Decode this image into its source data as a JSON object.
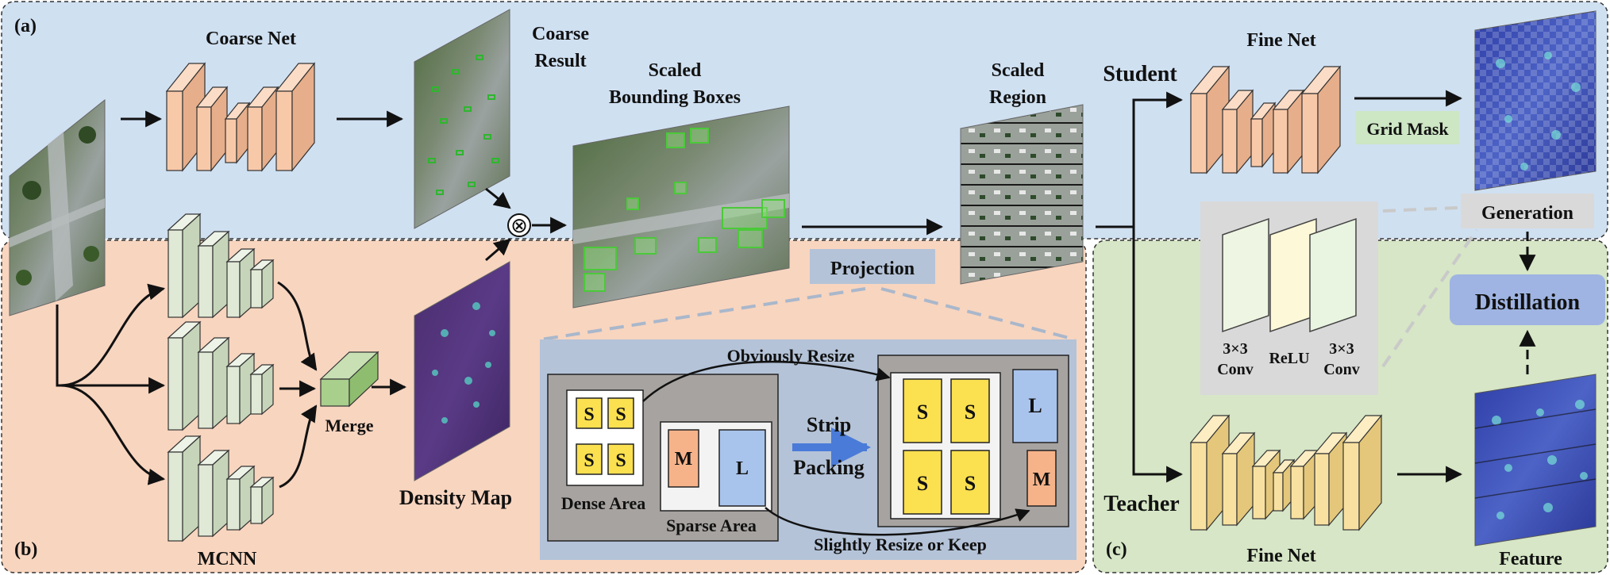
{
  "panels": {
    "a": "(a)",
    "b": "(b)",
    "c": "(c)"
  },
  "labels": {
    "coarse_net": "Coarse Net",
    "coarse_result_1": "Coarse",
    "coarse_result_2": "Result",
    "scaled_bbox_1": "Scaled",
    "scaled_bbox_2": "Bounding Boxes",
    "scaled_region_1": "Scaled",
    "scaled_region_2": "Region",
    "student": "Student",
    "teacher": "Teacher",
    "fine_net_top": "Fine Net",
    "fine_net_bottom": "Fine Net",
    "grid_mask": "Grid Mask",
    "generation": "Generation",
    "distillation": "Distillation",
    "feature": "Feature",
    "projection": "Projection",
    "merge": "Merge",
    "mcnn": "MCNN",
    "density_map": "Density Map",
    "conv1_a": "3×3",
    "conv1_b": "Conv",
    "relu": "ReLU",
    "conv2_a": "3×3",
    "conv2_b": "Conv",
    "obviously_resize": "Obviously Resize",
    "slightly_resize": "Slightly Resize or Keep",
    "strip": "Strip",
    "packing": "Packing",
    "dense_area": "Dense Area",
    "sparse_area": "Sparse Area",
    "multiply": "⊗"
  },
  "packing": {
    "dense_tiles": [
      "S",
      "S",
      "S",
      "S"
    ],
    "sparse_medium": "M",
    "sparse_large": "L",
    "packed_tiles": [
      "S",
      "S",
      "S",
      "S"
    ],
    "packed_large": "L",
    "packed_medium": "M"
  },
  "colors": {
    "panel_a_bg": "#cfe0f1",
    "panel_b_bg": "#f8d5bf",
    "panel_c_bg": "#d6e6c6",
    "coarse_net_block": "#f8c9a9",
    "mcnn_block": "#dfe9d6",
    "merge_block": "#a8cf8c",
    "fine_net_student": "#f8c9a9",
    "fine_net_teacher": "#f8e1a0",
    "small_tile": "#fbe050",
    "medium_tile": "#f6b38a",
    "large_tile": "#a9c4ec",
    "projection_tag": "#b4c3d8",
    "distillation_tag": "#9fb4e2",
    "grid_mask_tag": "#cde6c4",
    "generation_tag": "#d9d9d9"
  }
}
